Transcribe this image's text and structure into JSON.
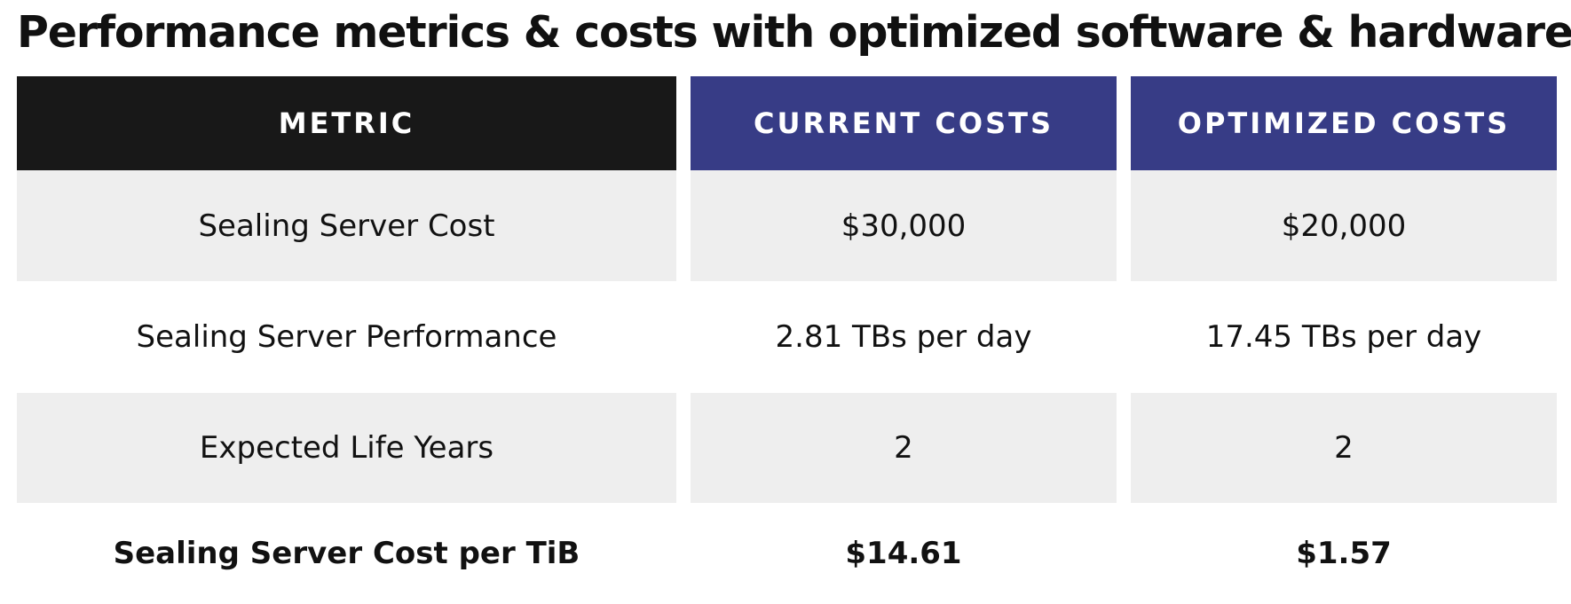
{
  "title": "Performance metrics & costs with optimized software & hardware",
  "table": {
    "header": [
      "METRIC",
      "CURRENT COSTS",
      "OPTIMIZED COSTS"
    ],
    "rows": [
      [
        "Sealing Server Cost",
        "$30,000",
        "$20,000"
      ],
      [
        "Sealing Server Performance",
        "2.81 TBs per day",
        "17.45 TBs per day"
      ],
      [
        "Expected Life Years",
        "2",
        "2"
      ],
      [
        "Sealing Server Cost per TiB",
        "$14.61",
        "$1.57"
      ]
    ]
  }
}
